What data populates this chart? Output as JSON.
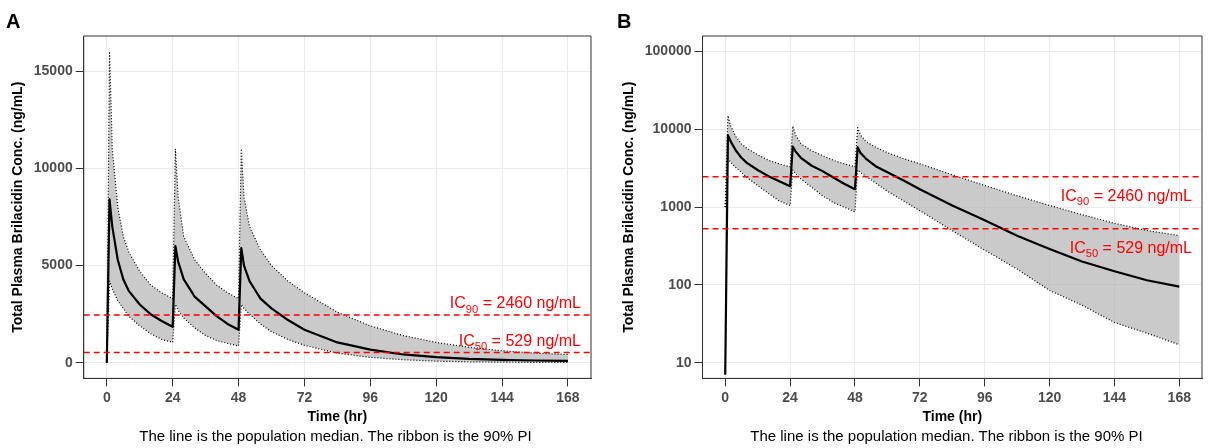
{
  "chart_data": [
    {
      "type": "line",
      "title": "A",
      "xlabel": "Time (hr)",
      "ylabel": "Total Plasma Brilacidin Conc. (ng/mL)",
      "xlim": [
        -8.4,
        176.4
      ],
      "xticks": [
        0,
        24,
        48,
        72,
        96,
        120,
        144,
        168
      ],
      "ylim": [
        -800,
        16800
      ],
      "yticks": [
        0,
        5000,
        10000,
        15000
      ],
      "grid": true,
      "legend": false,
      "marker": "none",
      "line_style": "solid",
      "x": [
        0,
        1,
        2,
        4,
        6,
        8,
        12,
        16,
        20,
        24,
        25,
        26,
        28,
        32,
        36,
        40,
        44,
        48,
        49,
        50,
        52,
        56,
        60,
        66,
        72,
        84,
        96,
        108,
        120,
        132,
        144,
        156,
        168
      ],
      "series": [
        {
          "color": "#000000",
          "values": [
            0,
            8400,
            7000,
            5300,
            4300,
            3700,
            3000,
            2500,
            2150,
            1850,
            6000,
            5200,
            4300,
            3400,
            2900,
            2400,
            2000,
            1700,
            5900,
            5000,
            4200,
            3300,
            2800,
            2200,
            1700,
            1050,
            680,
            430,
            290,
            200,
            150,
            120,
            100
          ],
          "lower": [
            0,
            4200,
            3800,
            3200,
            2800,
            2400,
            1900,
            1500,
            1200,
            1050,
            3000,
            2700,
            2300,
            1800,
            1400,
            1150,
            1000,
            870,
            3000,
            2800,
            2500,
            2000,
            1600,
            1200,
            900,
            500,
            280,
            160,
            85,
            55,
            33,
            24,
            17
          ],
          "upper": [
            0,
            16000,
            11000,
            8000,
            6500,
            5700,
            4700,
            4000,
            3600,
            3300,
            11000,
            8500,
            6500,
            5300,
            4600,
            4000,
            3600,
            3300,
            11000,
            8500,
            7000,
            5800,
            5000,
            4200,
            3600,
            2600,
            1900,
            1400,
            1050,
            800,
            620,
            500,
            430
          ]
        },
        {
          "type": "line",
          "color": "#000000",
          "line_style": "dotted",
          "values": [
            0,
            4200,
            3800,
            3200,
            2800,
            2400,
            1900,
            1500,
            1200,
            1050,
            3000,
            2700,
            2300,
            1800,
            1400,
            1150,
            1000,
            870,
            3000,
            2800,
            2500,
            2000,
            1600,
            1200,
            900,
            500,
            280,
            160,
            85,
            55,
            33,
            24,
            17
          ]
        },
        {
          "type": "line",
          "color": "#000000",
          "line_style": "dotted",
          "values": [
            0,
            16000,
            11000,
            8000,
            6500,
            5700,
            4700,
            4000,
            3600,
            3300,
            11000,
            8500,
            6500,
            5300,
            4600,
            4000,
            3600,
            3300,
            11000,
            8500,
            7000,
            5800,
            5000,
            4200,
            3600,
            2600,
            1900,
            1400,
            1050,
            800,
            620,
            500,
            430
          ]
        }
      ],
      "ref_lines": [
        {
          "axis": "y",
          "value": 2460,
          "label": "IC$_{90}$ = 2460 ng/mL",
          "color": "#ff0000",
          "line_style": "dashed"
        },
        {
          "axis": "y",
          "value": 529,
          "label": "IC$_{50}$ = 529 ng/mL",
          "color": "#ff0000",
          "line_style": "dashed"
        }
      ],
      "annotations": [
        "The line is the population median. The ribbon is the 90% PI"
      ]
    },
    {
      "type": "line",
      "title": "B",
      "xlabel": "Time (hr)",
      "ylabel": "Total Plasma Brilacidin Conc. (ng/mL)",
      "xlim": [
        -8.4,
        176.4
      ],
      "xticks": [
        0,
        24,
        48,
        72,
        96,
        120,
        144,
        168
      ],
      "ylim": [
        6.3,
        158000
      ],
      "yticks": [
        10,
        100,
        1000,
        10000,
        100000
      ],
      "log": "y",
      "grid": true,
      "legend": false,
      "marker": "none",
      "line_style": "solid",
      "x": [
        0,
        1,
        2,
        4,
        6,
        8,
        12,
        16,
        20,
        24,
        25,
        26,
        28,
        32,
        36,
        40,
        44,
        48,
        49,
        50,
        52,
        56,
        60,
        66,
        72,
        84,
        96,
        108,
        120,
        132,
        144,
        156,
        168
      ],
      "series": [
        {
          "color": "#000000",
          "values": [
            7,
            8400,
            7000,
            5300,
            4300,
            3700,
            3000,
            2500,
            2150,
            1850,
            6000,
            5200,
            4300,
            3400,
            2900,
            2400,
            2000,
            1700,
            5900,
            5000,
            4200,
            3300,
            2800,
            2200,
            1700,
            1050,
            680,
            430,
            290,
            200,
            150,
            115,
            95
          ],
          "lower": [
            1000,
            4200,
            3800,
            3200,
            2800,
            2400,
            1900,
            1500,
            1200,
            1050,
            3000,
            2700,
            2300,
            1800,
            1400,
            1150,
            1000,
            870,
            3000,
            2800,
            2500,
            2000,
            1600,
            1200,
            900,
            500,
            280,
            160,
            85,
            55,
            33,
            24,
            17
          ],
          "upper": [
            1000,
            15000,
            11000,
            8000,
            6500,
            5700,
            4700,
            4000,
            3600,
            3300,
            11000,
            8500,
            6500,
            5300,
            4600,
            4000,
            3600,
            3300,
            10500,
            8500,
            7000,
            5800,
            5000,
            4200,
            3600,
            2600,
            1900,
            1400,
            1050,
            800,
            620,
            500,
            430
          ]
        },
        {
          "type": "line",
          "color": "#000000",
          "line_style": "dotted",
          "values": [
            1000,
            4200,
            3800,
            3200,
            2800,
            2400,
            1900,
            1500,
            1200,
            1050,
            3000,
            2700,
            2300,
            1800,
            1400,
            1150,
            1000,
            870,
            3000,
            2800,
            2500,
            2000,
            1600,
            1200,
            900,
            500,
            280,
            160,
            85,
            55,
            33,
            24,
            17
          ]
        },
        {
          "type": "line",
          "color": "#000000",
          "line_style": "dotted",
          "values": [
            1000,
            15000,
            11000,
            8000,
            6500,
            5700,
            4700,
            4000,
            3600,
            3300,
            11000,
            8500,
            6500,
            5300,
            4600,
            4000,
            3600,
            3300,
            10500,
            8500,
            7000,
            5800,
            5000,
            4200,
            3600,
            2600,
            1900,
            1400,
            1050,
            800,
            620,
            500,
            430
          ]
        }
      ],
      "ref_lines": [
        {
          "axis": "y",
          "value": 2460,
          "label": "IC$_{90}$ = 2460 ng/mL",
          "color": "#ff0000",
          "line_style": "dashed"
        },
        {
          "axis": "y",
          "value": 529,
          "label": "IC$_{50}$ = 529 ng/mL",
          "color": "#ff0000",
          "line_style": "dashed"
        }
      ],
      "annotations": [
        "The line is the population median. The ribbon is the 90% PI"
      ]
    }
  ]
}
